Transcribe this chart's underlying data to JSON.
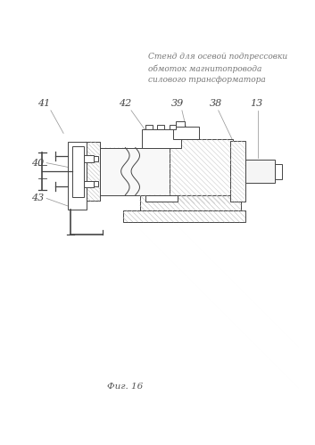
{
  "title_text": "Стенд для осевой подпрессовки\nобмоток магнитопровода\nсилового трансформатора",
  "fig_label": "Фиг. 16",
  "background_color": "#ffffff",
  "line_color": "#444444",
  "leader_color": "#999999",
  "hatch_color": "#bbbbbb"
}
